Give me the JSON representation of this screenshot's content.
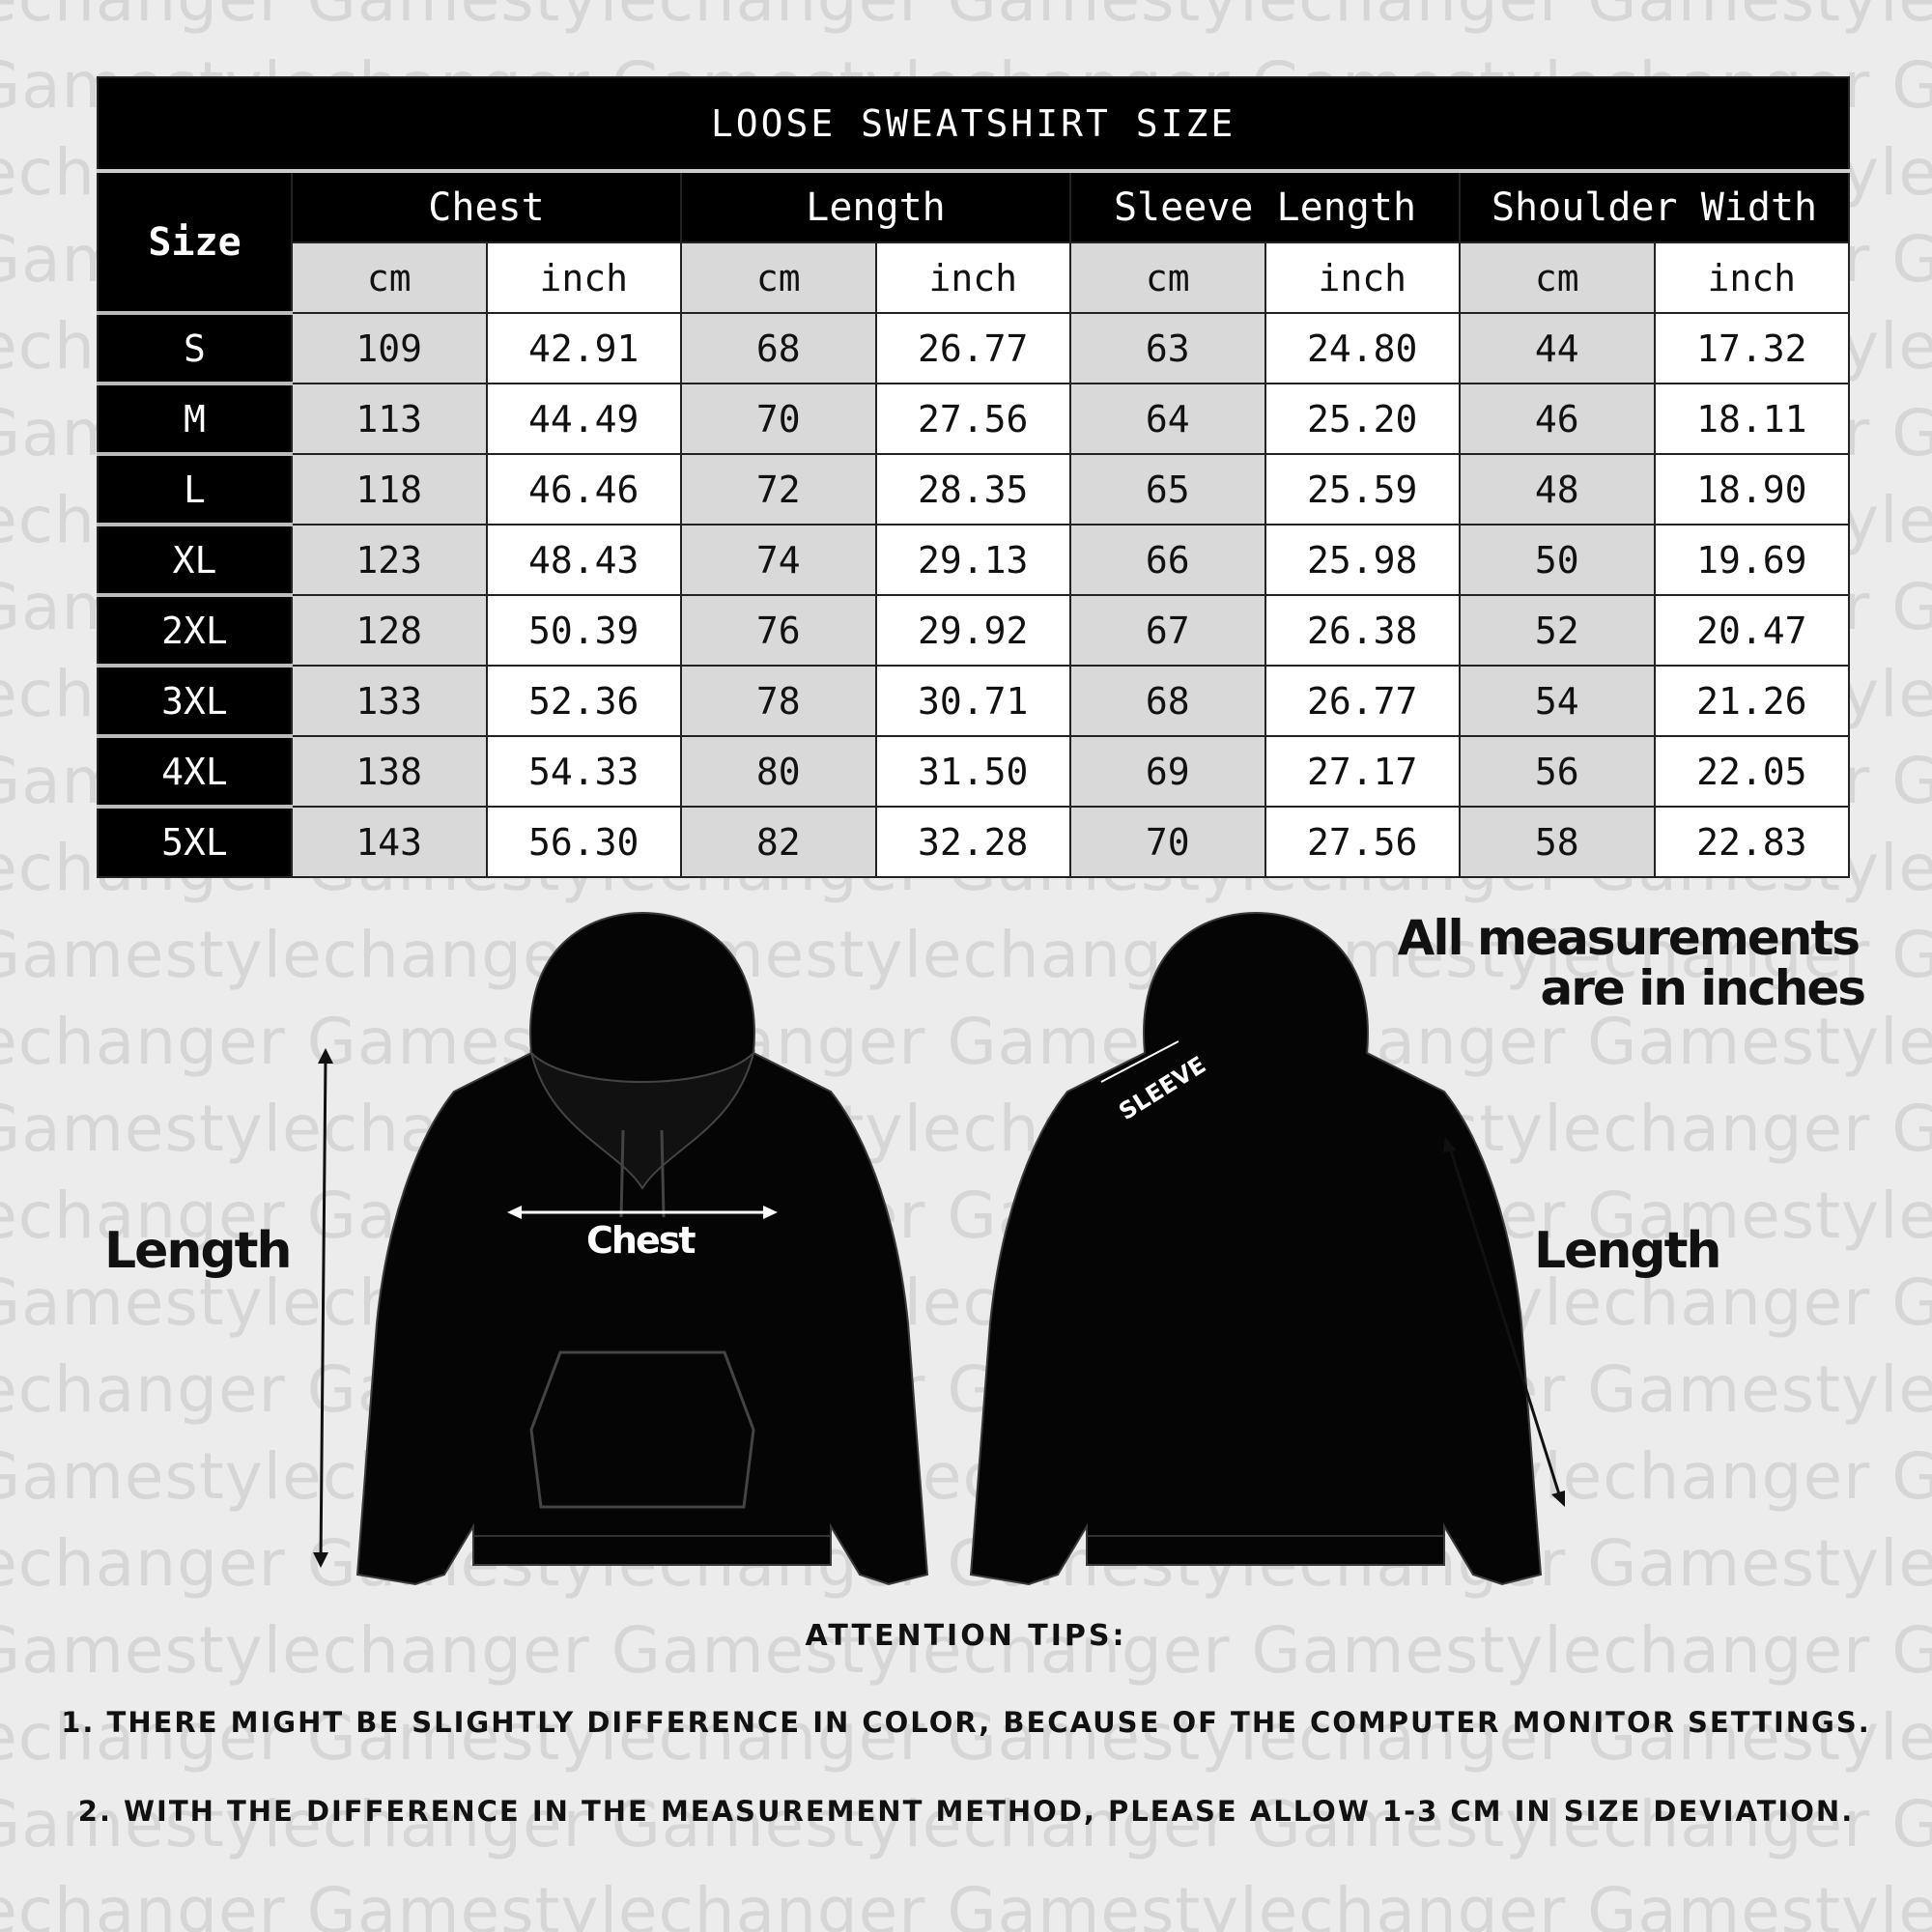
{
  "watermark": "Gamestylechanger",
  "table": {
    "title": "LOOSE SWEATSHIRT SIZE",
    "size_header": "Size",
    "groups": [
      "Chest",
      "Length",
      "Sleeve Length",
      "Shoulder Width"
    ],
    "units": [
      "cm",
      "inch"
    ],
    "rows": [
      [
        "S",
        "109",
        "42.91",
        "68",
        "26.77",
        "63",
        "24.80",
        "44",
        "17.32"
      ],
      [
        "M",
        "113",
        "44.49",
        "70",
        "27.56",
        "64",
        "25.20",
        "46",
        "18.11"
      ],
      [
        "L",
        "118",
        "46.46",
        "72",
        "28.35",
        "65",
        "25.59",
        "48",
        "18.90"
      ],
      [
        "XL",
        "123",
        "48.43",
        "74",
        "29.13",
        "66",
        "25.98",
        "50",
        "19.69"
      ],
      [
        "2XL",
        "128",
        "50.39",
        "76",
        "29.92",
        "67",
        "26.38",
        "52",
        "20.47"
      ],
      [
        "3XL",
        "133",
        "52.36",
        "78",
        "30.71",
        "68",
        "26.77",
        "54",
        "21.26"
      ],
      [
        "4XL",
        "138",
        "54.33",
        "80",
        "31.50",
        "69",
        "27.17",
        "56",
        "22.05"
      ],
      [
        "5XL",
        "143",
        "56.30",
        "82",
        "32.28",
        "70",
        "27.56",
        "58",
        "22.83"
      ]
    ]
  },
  "diagram": {
    "measurements_note_1": "All measurements",
    "measurements_note_2": "are in inches",
    "length_left": "Length",
    "chest": "Chest",
    "sleeve": "SLEEVE",
    "length_right": "Length"
  },
  "tips": {
    "heading": "ATTENTION TIPS:",
    "items": [
      "1. THERE MIGHT BE SLIGHTLY DIFFERENCE IN COLOR, BECAUSE OF THE COMPUTER MONITOR SETTINGS.",
      "2. WITH THE DIFFERENCE IN THE MEASUREMENT METHOD, PLEASE ALLOW 1-3 CM IN SIZE DEVIATION."
    ]
  }
}
